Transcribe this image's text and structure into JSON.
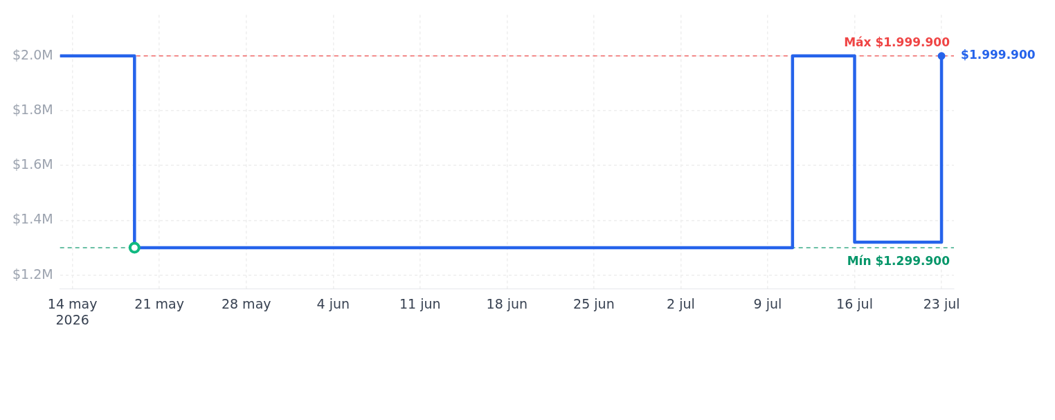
{
  "chart_data": {
    "type": "step",
    "series": [
      {
        "color": "#2563eb",
        "x": [
          "2026-05-13",
          "2026-05-19",
          "2026-07-11",
          "2026-07-16",
          "2026-07-23"
        ],
        "values": [
          1999900,
          1299900,
          1999900,
          1319900,
          1999900
        ]
      },
      {
        "type": "scatter",
        "color": "#10b981",
        "marker": "circle",
        "x": [
          "2026-05-19"
        ],
        "values": [
          1299900
        ]
      },
      {
        "type": "scatter",
        "color": "#2563eb",
        "marker": "circle",
        "x": [
          "2026-07-23"
        ],
        "values": [
          1999900
        ]
      }
    ],
    "xlim": [
      "2026-05-13",
      "2026-07-24"
    ],
    "xticks": [
      {
        "value": "2026-05-14",
        "label": "14 may 2026"
      },
      {
        "value": "2026-05-21",
        "label": "21 may"
      },
      {
        "value": "2026-05-28",
        "label": "28 may"
      },
      {
        "value": "2026-06-04",
        "label": "4 jun"
      },
      {
        "value": "2026-06-11",
        "label": "11 jun"
      },
      {
        "value": "2026-06-18",
        "label": "18 jun"
      },
      {
        "value": "2026-06-25",
        "label": "25 jun"
      },
      {
        "value": "2026-07-02",
        "label": "2 jul"
      },
      {
        "value": "2026-07-09",
        "label": "9 jul"
      },
      {
        "value": "2026-07-16",
        "label": "16 jul"
      },
      {
        "value": "2026-07-23",
        "label": "23 jul"
      }
    ],
    "ylim": [
      1150000,
      2150000
    ],
    "yticks": [
      {
        "value": 1200000,
        "label": "$1.2M"
      },
      {
        "value": 1400000,
        "label": "$1.4M"
      },
      {
        "value": 1600000,
        "label": "$1.6M"
      },
      {
        "value": 1800000,
        "label": "$1.8M"
      },
      {
        "value": 2000000,
        "label": "$2.0M"
      }
    ],
    "grid": true,
    "ref_lines": [
      {
        "axis": "y",
        "value": 1999900,
        "label": "Máx $1.999.900",
        "color": "#ef4444",
        "line_style": "dashed"
      },
      {
        "axis": "y",
        "value": 1299900,
        "label": "Mín $1.299.900",
        "color": "#059669",
        "line_style": "dashed"
      }
    ],
    "annotations": [
      {
        "text": "$1.999.900",
        "x": "2026-07-23",
        "y": 1999900
      }
    ]
  }
}
